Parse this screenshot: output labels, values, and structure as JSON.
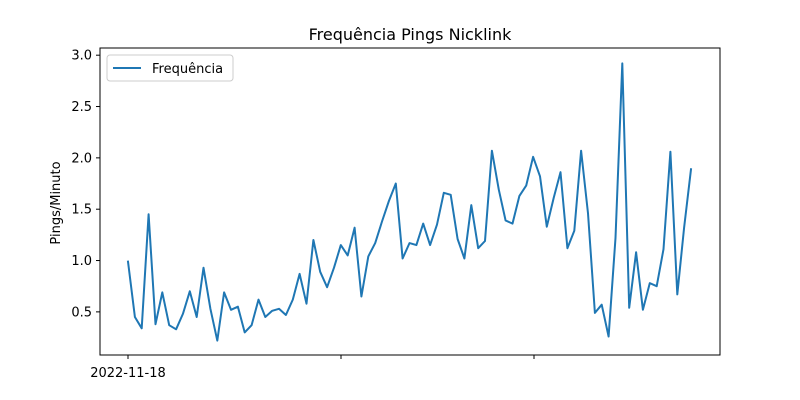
{
  "chart_data": {
    "type": "line",
    "title": "Frequência Pings Nicklink",
    "xlabel": "",
    "ylabel": "Pings/Minuto",
    "x_tick_labels": [
      "2022-11-18",
      "",
      ""
    ],
    "y_ticks": [
      0.5,
      1.0,
      1.5,
      2.0,
      2.5,
      3.0
    ],
    "y_tick_labels": [
      "0.5",
      "1.0",
      "1.5",
      "2.0",
      "2.5",
      "3.0"
    ],
    "ylim": [
      0.08,
      3.07
    ],
    "grid": false,
    "legend_position": "upper left",
    "series": [
      {
        "name": "Frequência",
        "color": "#1f77b4",
        "values": [
          0.99,
          0.45,
          0.34,
          1.45,
          0.38,
          0.69,
          0.37,
          0.33,
          0.48,
          0.7,
          0.45,
          0.93,
          0.53,
          0.22,
          0.69,
          0.52,
          0.55,
          0.3,
          0.37,
          0.62,
          0.45,
          0.51,
          0.53,
          0.47,
          0.62,
          0.87,
          0.58,
          1.2,
          0.89,
          0.74,
          0.93,
          1.15,
          1.05,
          1.32,
          0.65,
          1.04,
          1.17,
          1.38,
          1.58,
          1.75,
          1.02,
          1.17,
          1.15,
          1.36,
          1.15,
          1.35,
          1.66,
          1.64,
          1.21,
          1.02,
          1.54,
          1.12,
          1.19,
          2.07,
          1.69,
          1.39,
          1.36,
          1.63,
          1.73,
          2.01,
          1.82,
          1.33,
          1.61,
          1.86,
          1.12,
          1.29,
          2.07,
          1.46,
          0.49,
          0.57,
          0.26,
          1.22,
          2.92,
          0.54,
          1.08,
          0.52,
          0.78,
          0.75,
          1.11,
          2.06,
          0.67,
          1.32,
          1.89
        ]
      }
    ]
  }
}
